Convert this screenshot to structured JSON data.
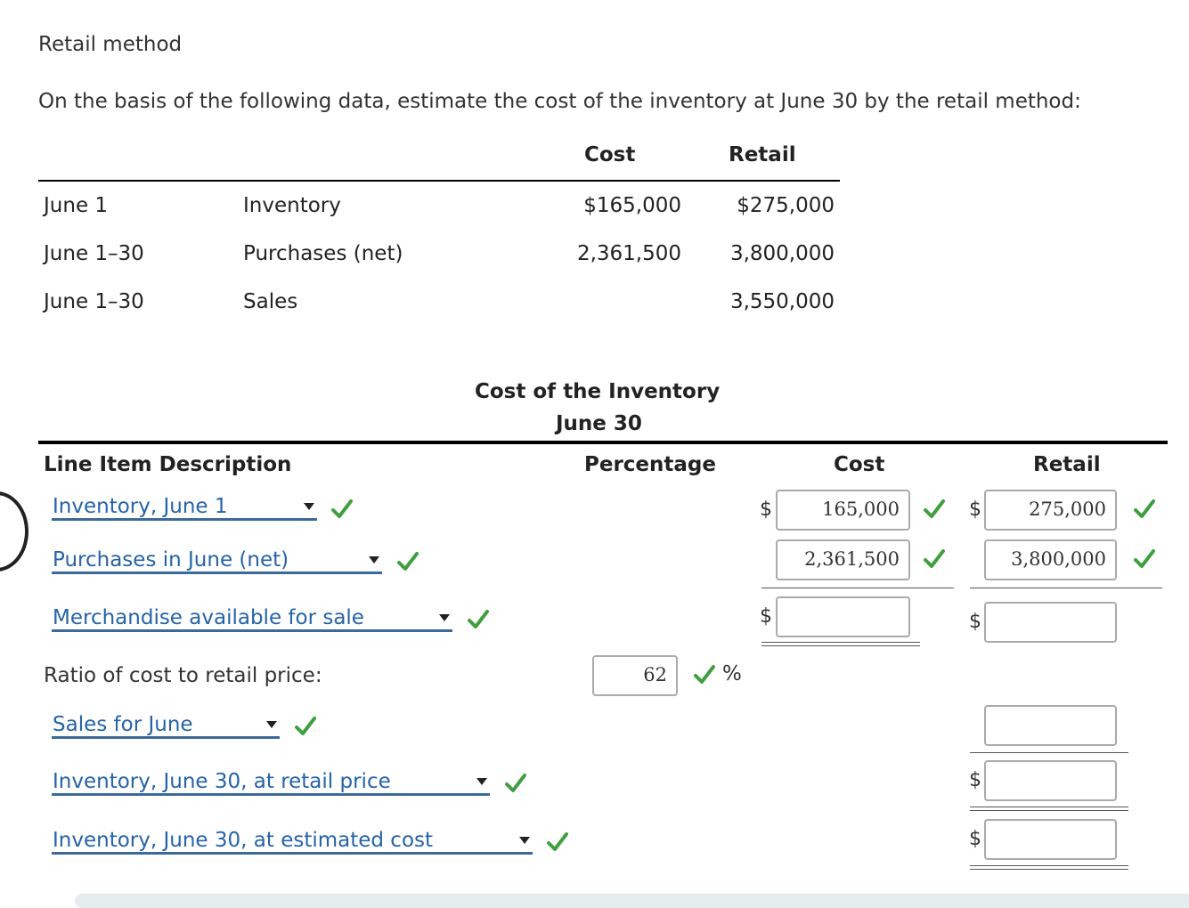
{
  "title": "Retail method",
  "intro": "On the basis of the following data, estimate the cost of the inventory at June 30 by the retail method:",
  "data_table": {
    "headers": {
      "cost": "Cost",
      "retail": "Retail"
    },
    "rows": [
      {
        "date": "June 1",
        "item": "Inventory",
        "cost": "$165,000",
        "retail": "$275,000"
      },
      {
        "date": "June 1–30",
        "item": "Purchases (net)",
        "cost": "2,361,500",
        "retail": "3,800,000"
      },
      {
        "date": "June 1–30",
        "item": "Sales",
        "cost": "",
        "retail": "3,550,000"
      }
    ]
  },
  "answer": {
    "heading": "Cost of the Inventory",
    "subheading": "June 30",
    "columns": {
      "description": "Line Item Description",
      "percentage": "Percentage",
      "cost": "Cost",
      "retail": "Retail"
    },
    "rows": {
      "inventory_june1": {
        "label": "Inventory, June 1",
        "cost": "165,000",
        "retail": "275,000"
      },
      "purchases": {
        "label": "Purchases in June (net)",
        "cost": "2,361,500",
        "retail": "3,800,000"
      },
      "merch_available": {
        "label": "Merchandise available for sale",
        "cost": "",
        "retail": ""
      },
      "ratio": {
        "label": "Ratio of cost to retail price:",
        "percentage": "62",
        "unit": "%"
      },
      "sales": {
        "label": "Sales for June",
        "retail": ""
      },
      "inv_retail": {
        "label": "Inventory, June 30, at retail price",
        "retail": ""
      },
      "inv_cost": {
        "label": "Inventory, June 30, at estimated cost",
        "retail": ""
      }
    },
    "currency_symbol": "$"
  },
  "colors": {
    "check": "#3f9f3f",
    "link": "#2563a8",
    "underline": "#3b6999"
  }
}
